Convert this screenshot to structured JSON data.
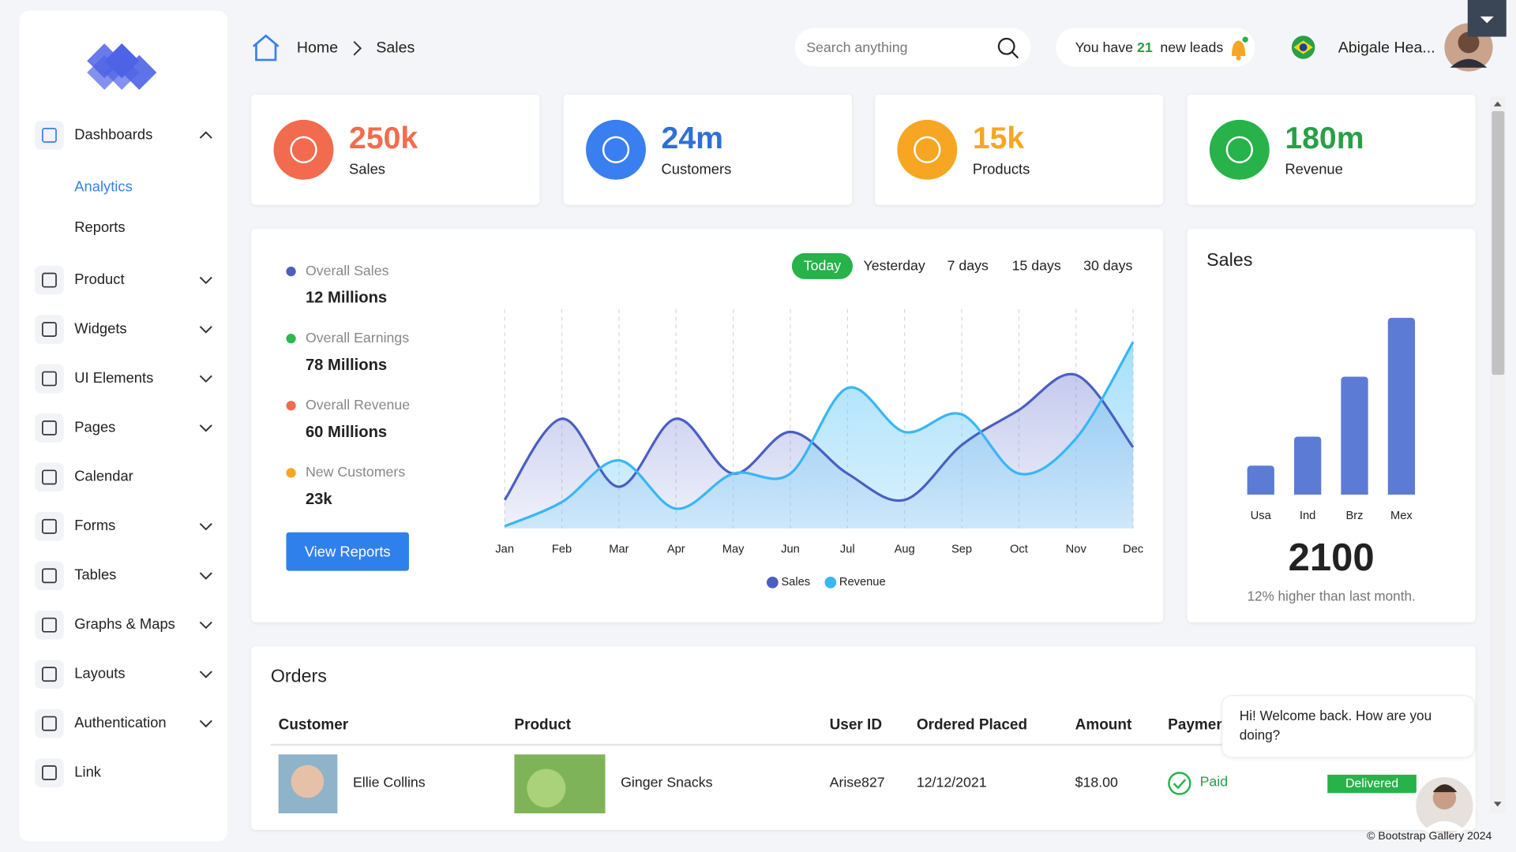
{
  "breadcrumb": [
    "Home",
    "Sales"
  ],
  "search_placeholder": "Search anything",
  "leads": {
    "prefix": "You have",
    "count": 21,
    "suffix": "new leads"
  },
  "user_name": "Abigale Hea...",
  "sidebar": [
    {
      "label": "Dashboards",
      "children": [
        "Analytics",
        "Reports"
      ]
    },
    {
      "label": "Product",
      "collapsible": true
    },
    {
      "label": "Widgets",
      "collapsible": true
    },
    {
      "label": "UI Elements",
      "collapsible": true
    },
    {
      "label": "Pages",
      "collapsible": true
    },
    {
      "label": "Calendar"
    },
    {
      "label": "Forms",
      "collapsible": true
    },
    {
      "label": "Tables",
      "collapsible": true
    },
    {
      "label": "Graphs & Maps",
      "collapsible": true
    },
    {
      "label": "Layouts",
      "collapsible": true
    },
    {
      "label": "Authentication",
      "collapsible": true
    },
    {
      "label": "Link"
    }
  ],
  "stats": [
    {
      "value": "250k",
      "label": "Sales",
      "color": "#f26b4e",
      "text_color": "#f26b4e"
    },
    {
      "value": "24m",
      "label": "Customers",
      "color": "#3a7ff0",
      "text_color": "#2f6fd8"
    },
    {
      "value": "15k",
      "label": "Products",
      "color": "#f6a623",
      "text_color": "#f6a623"
    },
    {
      "value": "180m",
      "label": "Revenue",
      "color": "#27b24a",
      "text_color": "#27a046"
    }
  ],
  "summary": [
    {
      "name": "Overall Sales",
      "value": "12 Millions",
      "color": "#4a5fc1"
    },
    {
      "name": "Overall Earnings",
      "value": "78 Millions",
      "color": "#2bb84f"
    },
    {
      "name": "Overall Revenue",
      "value": "60 Millions",
      "color": "#f26b4e"
    },
    {
      "name": "New Customers",
      "value": "23k",
      "color": "#f6a623"
    }
  ],
  "button": "View Reports",
  "filters": [
    "Today",
    "Yesterday",
    "7 days",
    "15 days",
    "30 days"
  ],
  "area_chart": {
    "type": "area",
    "categories": [
      "Jan",
      "Feb",
      "Mar",
      "Apr",
      "May",
      "Jun",
      "Jul",
      "Aug",
      "Sep",
      "Oct",
      "Nov",
      "Dec"
    ],
    "ylim": [
      0,
      100
    ],
    "series": [
      {
        "name": "Sales",
        "color": "#4a5fc1",
        "values": [
          13,
          50,
          19,
          50,
          25,
          44,
          25,
          13,
          38,
          54,
          70,
          37
        ]
      },
      {
        "name": "Revenue",
        "color": "#38b6f5",
        "values": [
          1,
          12,
          31,
          9,
          25,
          25,
          64,
          44,
          52,
          25,
          41,
          85
        ]
      }
    ]
  },
  "bar_chart": {
    "type": "bar",
    "title": "Sales",
    "categories": [
      "Usa",
      "Ind",
      "Brz",
      "Mex"
    ],
    "values": [
      30,
      60,
      122,
      183
    ],
    "color": "#5b7bd5",
    "ylim": [
      0,
      200
    ],
    "total": 2100,
    "note": "12% higher than last month."
  },
  "orders": {
    "title": "Orders",
    "columns": [
      "Customer",
      "Product",
      "User ID",
      "Ordered Placed",
      "Amount",
      "Payment"
    ],
    "rows": [
      {
        "customer": "Ellie Collins",
        "product": "Ginger Snacks",
        "user_id": "Arise827",
        "date": "12/12/2021",
        "amount": "$18.00",
        "payment": "Paid",
        "status": "Delivered"
      }
    ]
  },
  "chat": [
    "Hi! Welcome back. How are you",
    "doing?"
  ],
  "footer": "© Bootstrap Gallery 2024"
}
